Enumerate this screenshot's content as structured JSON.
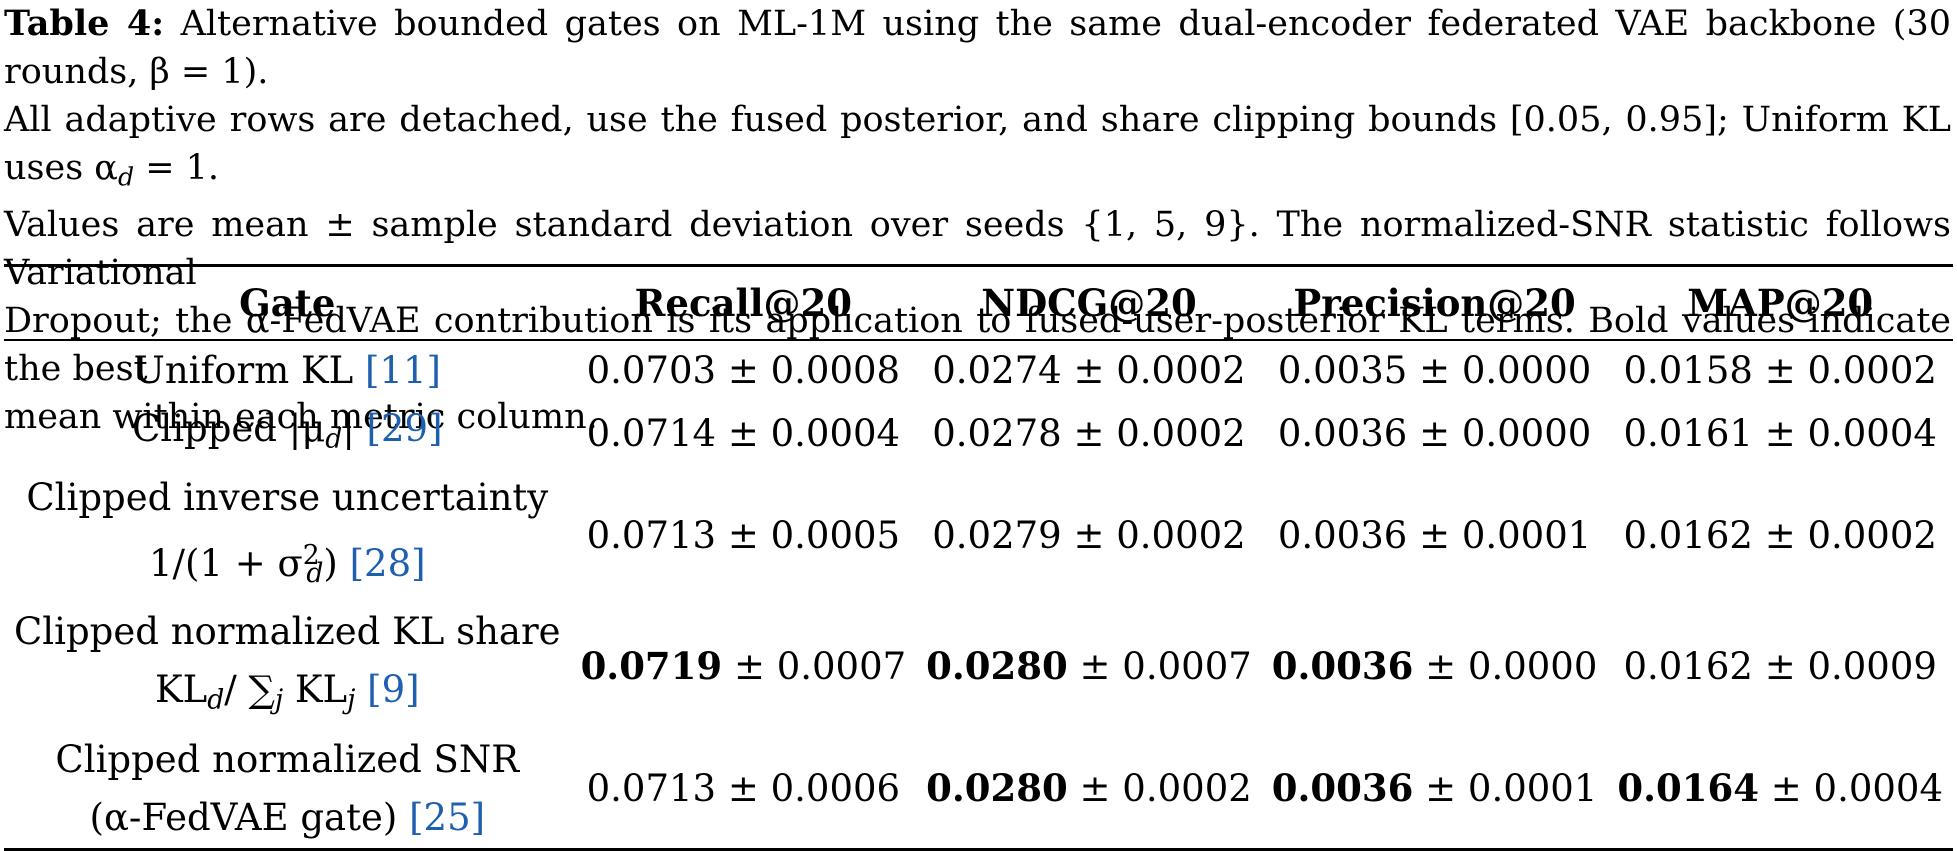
{
  "caption": {
    "label": "Table 4:",
    "line1": "Alternative bounded gates on ML-1M using the same dual-encoder federated VAE backbone (30 rounds, β = 1).",
    "line2": "All adaptive rows are detached, use the fused posterior, and share clipping bounds [0.05, 0.95]; Uniform KL uses α",
    "line2_sub": "d",
    "line2_end": " = 1.",
    "line3": "Values are mean ± sample standard deviation over seeds {1, 5, 9}. The normalized-SNR statistic follows Variational",
    "line4": "Dropout; the α-FedVAE contribution is its application to fused-user-posterior KL terms. Bold values indicate the best",
    "line5": "mean within each metric column."
  },
  "table": {
    "headers": [
      "Gate",
      "Recall@20",
      "NDCG@20",
      "Precision@20",
      "MAP@20"
    ],
    "rows": [
      {
        "gate_line1": "Uniform KL",
        "gate_line2": "",
        "cite": "[11]",
        "cells": [
          {
            "mean": "0.0703",
            "std": "± 0.0008",
            "bold": false
          },
          {
            "mean": "0.0274",
            "std": "± 0.0002",
            "bold": false
          },
          {
            "mean": "0.0035",
            "std": "± 0.0000",
            "bold": false
          },
          {
            "mean": "0.0158",
            "std": "± 0.0002",
            "bold": false
          }
        ]
      },
      {
        "gate_line1": "Clipped |μ",
        "gate_line1_sub": "d",
        "gate_line1_end": "|",
        "cite": "[29]",
        "cells": [
          {
            "mean": "0.0714",
            "std": "± 0.0004",
            "bold": false
          },
          {
            "mean": "0.0278",
            "std": "± 0.0002",
            "bold": false
          },
          {
            "mean": "0.0036",
            "std": "± 0.0000",
            "bold": false
          },
          {
            "mean": "0.0161",
            "std": "± 0.0004",
            "bold": false
          }
        ]
      },
      {
        "gate_line1": "Clipped inverse uncertainty",
        "gate_line2": "1/(1 + σ",
        "gate_line2_sup": "2",
        "gate_line2_sub": "d",
        "gate_line2_end": ")",
        "cite": "[28]",
        "cells": [
          {
            "mean": "0.0713",
            "std": "± 0.0005",
            "bold": false
          },
          {
            "mean": "0.0279",
            "std": "± 0.0002",
            "bold": false
          },
          {
            "mean": "0.0036",
            "std": "± 0.0001",
            "bold": false
          },
          {
            "mean": "0.0162",
            "std": "± 0.0002",
            "bold": false
          }
        ]
      },
      {
        "gate_line1": "Clipped normalized KL share",
        "gate_line2": "KL",
        "gate_line2_sub": "d",
        "gate_line2_mid": "/ ∑",
        "gate_line2_sub2": "j",
        "gate_line2_mid2": " KL",
        "gate_line2_sub3": "j",
        "cite": "[9]",
        "cells": [
          {
            "mean": "0.0719",
            "std": "± 0.0007",
            "bold": true
          },
          {
            "mean": "0.0280",
            "std": "± 0.0007",
            "bold": true
          },
          {
            "mean": "0.0036",
            "std": "± 0.0000",
            "bold": true
          },
          {
            "mean": "0.0162",
            "std": "± 0.0009",
            "bold": false
          }
        ]
      },
      {
        "gate_line1": "Clipped normalized SNR",
        "gate_line2": "(α-FedVAE gate)",
        "cite": "[25]",
        "cells": [
          {
            "mean": "0.0713",
            "std": "± 0.0006",
            "bold": false
          },
          {
            "mean": "0.0280",
            "std": "± 0.0002",
            "bold": true
          },
          {
            "mean": "0.0036",
            "std": "± 0.0001",
            "bold": true
          },
          {
            "mean": "0.0164",
            "std": "± 0.0004",
            "bold": true
          }
        ]
      }
    ]
  }
}
